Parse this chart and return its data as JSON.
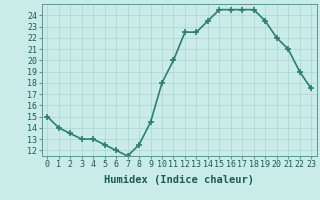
{
  "x": [
    0,
    1,
    2,
    3,
    4,
    5,
    6,
    7,
    8,
    9,
    10,
    11,
    12,
    13,
    14,
    15,
    16,
    17,
    18,
    19,
    20,
    21,
    22,
    23
  ],
  "y": [
    15,
    14,
    13.5,
    13,
    13,
    12.5,
    12,
    11.5,
    12.5,
    14.5,
    18,
    20,
    22.5,
    22.5,
    23.5,
    24.5,
    24.5,
    24.5,
    24.5,
    23.5,
    22,
    21,
    19,
    17.5
  ],
  "line_color": "#2e7d6e",
  "marker": "+",
  "marker_size": 4,
  "marker_lw": 1.2,
  "line_width": 1.2,
  "bg_color": "#c9ece8",
  "grid_color": "#aed4cf",
  "xlabel": "Humidex (Indice chaleur)",
  "xlim": [
    -0.5,
    23.5
  ],
  "ylim": [
    11.5,
    25
  ],
  "yticks": [
    12,
    13,
    14,
    15,
    16,
    17,
    18,
    19,
    20,
    21,
    22,
    23,
    24
  ],
  "xticks": [
    0,
    1,
    2,
    3,
    4,
    5,
    6,
    7,
    8,
    9,
    10,
    11,
    12,
    13,
    14,
    15,
    16,
    17,
    18,
    19,
    20,
    21,
    22,
    23
  ],
  "xtick_labels": [
    "0",
    "1",
    "2",
    "3",
    "4",
    "5",
    "6",
    "7",
    "8",
    "9",
    "10",
    "11",
    "12",
    "13",
    "14",
    "15",
    "16",
    "17",
    "18",
    "19",
    "20",
    "21",
    "22",
    "23"
  ],
  "tick_fontsize": 6,
  "xlabel_fontsize": 7.5
}
